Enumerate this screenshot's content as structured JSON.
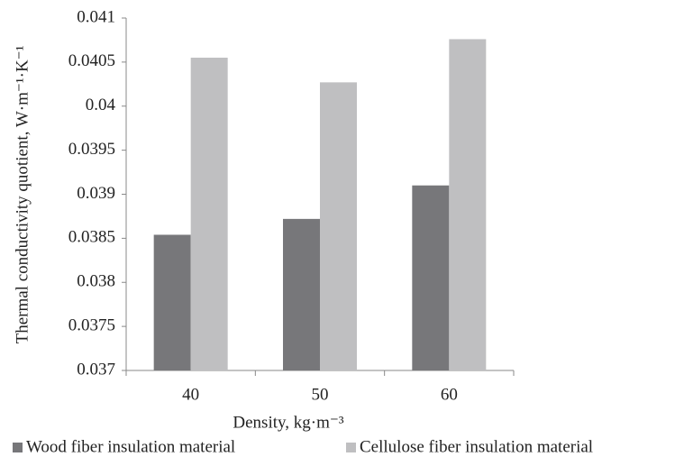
{
  "chart_data": {
    "type": "bar",
    "x_label": "Density, kg·m⁻³",
    "y_label": "Thermal conductivity quotient, W·m⁻¹·K⁻¹",
    "categories": [
      "40",
      "50",
      "60"
    ],
    "series": [
      {
        "name": "Wood fiber insulation material",
        "color": "#77777a",
        "values": [
          0.03854,
          0.03872,
          0.0391
        ]
      },
      {
        "name": "Cellulose fiber  insulation material",
        "color": "#bfbfc1",
        "values": [
          0.04055,
          0.04027,
          0.04076
        ]
      }
    ],
    "ylim": [
      0.037,
      0.041
    ],
    "yticks": [
      0.037,
      0.0375,
      0.038,
      0.0385,
      0.039,
      0.0395,
      0.04,
      0.0405,
      0.041
    ],
    "grid": false,
    "legend": "bottom"
  }
}
